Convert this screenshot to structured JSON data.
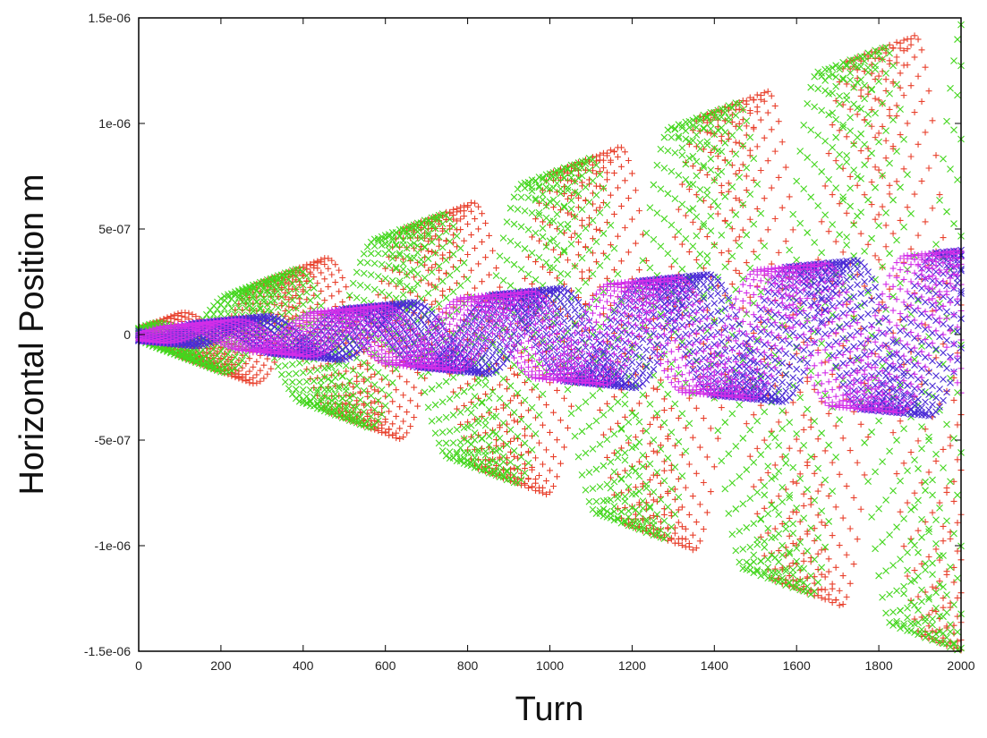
{
  "chart_data": {
    "type": "scatter",
    "title": "",
    "xlabel": "Turn",
    "ylabel": "Horizontal Position m",
    "xlim": [
      0,
      2000
    ],
    "ylim": [
      -1.5e-06,
      1.5e-06
    ],
    "x_ticks": [
      0,
      200,
      400,
      600,
      800,
      1000,
      1200,
      1400,
      1600,
      1800,
      2000
    ],
    "x_tick_labels": [
      "0",
      "200",
      "400",
      "600",
      "800",
      "1000",
      "1200",
      "1400",
      "1600",
      "1800",
      "2000"
    ],
    "y_ticks": [
      1.5e-06,
      1e-06,
      5e-07,
      0,
      -5e-07,
      -1e-06,
      -1.5e-06
    ],
    "y_tick_labels": [
      "1.5e-06",
      "1e-06",
      "5e-07",
      "0",
      "-5e-07",
      "-1e-06",
      "-1.5e-06"
    ],
    "grid": false,
    "legend": "none",
    "series": [
      {
        "marker": "+",
        "color": "#e8402c",
        "x_range": [
          0,
          2000
        ],
        "start_amplitude": 3e-08,
        "end_amplitude": 1.5e-06
      },
      {
        "marker": "x",
        "color": "#44d61e",
        "x_range": [
          0,
          2000
        ],
        "start_amplitude": 3e-08,
        "end_amplitude": 1.5e-06
      },
      {
        "marker": "x",
        "color": "#4b2bd6",
        "x_range": [
          0,
          2000
        ],
        "start_amplitude": 3e-08,
        "end_amplitude": 4e-07
      },
      {
        "marker": "+",
        "color": "#d22ee8",
        "x_range": [
          0,
          2000
        ],
        "start_amplitude": 3e-08,
        "end_amplitude": 4e-07
      }
    ]
  }
}
